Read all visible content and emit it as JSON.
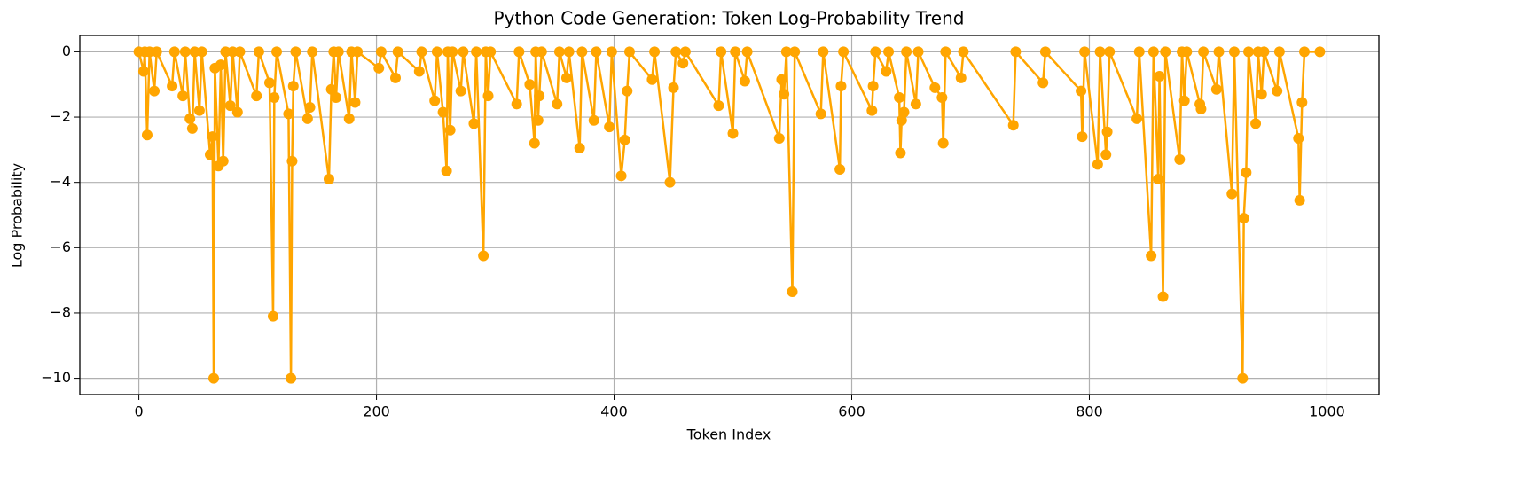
{
  "chart_data": {
    "type": "line",
    "title": "Python Code Generation: Token Log-Probability Trend",
    "x_label": "Token Index",
    "y_label": "Log Probability",
    "color": "#ffa500",
    "grid": true,
    "marker": "circle",
    "xlim": [
      -49.7,
      1043.7
    ],
    "ylim": [
      -10.5,
      0.5
    ],
    "xticks": [
      0,
      200,
      400,
      600,
      800,
      1000
    ],
    "yticks": [
      {
        "value": -10,
        "label": "−10"
      },
      {
        "value": -8,
        "label": "−8"
      },
      {
        "value": -6,
        "label": "−6"
      },
      {
        "value": -4,
        "label": "−4"
      },
      {
        "value": -2,
        "label": "−2"
      },
      0
    ],
    "x": [
      0,
      4,
      5,
      7,
      9,
      13,
      15,
      28,
      30,
      37,
      39,
      43,
      45,
      47,
      51,
      53,
      60,
      62,
      63,
      64,
      67,
      69,
      71,
      73,
      77,
      79,
      83,
      85,
      99,
      101,
      110,
      113,
      114,
      116,
      126,
      128,
      129,
      130,
      132,
      142,
      144,
      146,
      160,
      162,
      164,
      166,
      168,
      177,
      179,
      182,
      184,
      202,
      204,
      216,
      218,
      236,
      238,
      249,
      251,
      256,
      259,
      260,
      262,
      264,
      271,
      273,
      282,
      284,
      290,
      292,
      294,
      296,
      318,
      320,
      329,
      333,
      334,
      336,
      337,
      339,
      352,
      354,
      360,
      362,
      371,
      373,
      383,
      385,
      396,
      398,
      406,
      409,
      411,
      413,
      432,
      434,
      447,
      450,
      452,
      458,
      460,
      488,
      490,
      500,
      502,
      510,
      512,
      539,
      541,
      543,
      545,
      550,
      552,
      574,
      576,
      590,
      591,
      593,
      617,
      618,
      620,
      629,
      631,
      640,
      641,
      642,
      644,
      646,
      654,
      656,
      670,
      676,
      677,
      679,
      692,
      694,
      736,
      738,
      761,
      763,
      793,
      794,
      796,
      807,
      809,
      814,
      815,
      817,
      840,
      842,
      852,
      854,
      858,
      859,
      862,
      864,
      876,
      878,
      880,
      882,
      893,
      894,
      896,
      907,
      909,
      920,
      922,
      929,
      930,
      932,
      934,
      940,
      942,
      945,
      947,
      958,
      960,
      976,
      977,
      979,
      981,
      994
    ],
    "values": [
      0,
      -0.6,
      0,
      -2.55,
      0,
      -1.2,
      0,
      -1.05,
      0,
      -1.35,
      0,
      -2.05,
      -2.35,
      0,
      -1.8,
      0,
      -3.15,
      -2.6,
      -10,
      -0.5,
      -3.5,
      -0.4,
      -3.35,
      0,
      -1.65,
      0,
      -1.85,
      0,
      -1.35,
      0,
      -0.95,
      -8.1,
      -1.4,
      0,
      -1.9,
      -10,
      -3.35,
      -1.05,
      0,
      -2.05,
      -1.7,
      0,
      -3.9,
      -1.15,
      0,
      -1.4,
      0,
      -2.05,
      0,
      -1.55,
      0,
      -0.5,
      0,
      -0.8,
      0,
      -0.6,
      0,
      -1.5,
      0,
      -1.85,
      -3.65,
      0,
      -2.4,
      0,
      -1.2,
      0,
      -2.2,
      0,
      -6.25,
      0,
      -1.35,
      0,
      -1.6,
      0,
      -1.0,
      -2.8,
      0,
      -2.1,
      -1.35,
      0,
      -1.6,
      0,
      -0.8,
      0,
      -2.95,
      0,
      -2.1,
      0,
      -2.3,
      0,
      -3.8,
      -2.7,
      -1.2,
      0,
      -0.85,
      0,
      -4.0,
      -1.1,
      0,
      -0.35,
      0,
      -1.65,
      0,
      -2.5,
      0,
      -0.9,
      0,
      -2.65,
      -0.85,
      -1.3,
      0,
      -7.35,
      0,
      -1.9,
      0,
      -3.6,
      -1.05,
      0,
      -1.8,
      -1.05,
      0,
      -0.6,
      0,
      -1.4,
      -3.1,
      -2.1,
      -1.85,
      0,
      -1.6,
      0,
      -1.1,
      -1.4,
      -2.8,
      0,
      -0.8,
      0,
      -2.25,
      0,
      -0.95,
      0,
      -1.2,
      -2.6,
      0,
      -3.45,
      0,
      -3.15,
      -2.45,
      0,
      -2.05,
      0,
      -6.25,
      0,
      -3.9,
      -0.75,
      -7.5,
      0,
      -3.3,
      0,
      -1.5,
      0,
      -1.6,
      -1.75,
      0,
      -1.15,
      0,
      -4.35,
      0,
      -10,
      -5.1,
      -3.7,
      0,
      -2.2,
      0,
      -1.3,
      0,
      -1.2,
      0,
      -2.65,
      -4.55,
      -1.55,
      0,
      0
    ]
  }
}
